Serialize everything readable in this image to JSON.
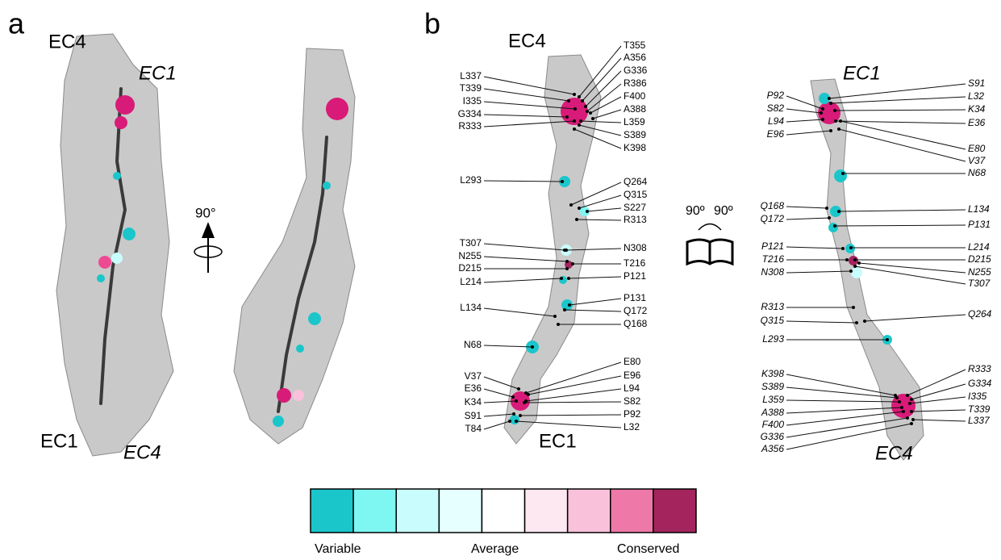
{
  "panel_a": {
    "label": "a",
    "left_top": "EC4",
    "left_top_italic": "EC1",
    "left_bottom": "EC1",
    "left_bottom_italic": "EC4",
    "rotation": "90°"
  },
  "panel_b": {
    "label": "b",
    "left": {
      "top": "EC4",
      "bottom": "EC1",
      "labels_left": [
        "L337",
        "T339",
        "I335",
        "G334",
        "R333",
        "L293",
        "T307",
        "N255",
        "D215",
        "L214",
        "L134",
        "N68",
        "V37",
        "E36",
        "K34",
        "S91",
        "T84"
      ],
      "labels_right": [
        "T355",
        "A356",
        "G336",
        "R386",
        "F400",
        "A388",
        "L359",
        "S389",
        "K398",
        "Q264",
        "Q315",
        "S227",
        "R313",
        "N308",
        "T216",
        "P121",
        "P131",
        "Q172",
        "Q168",
        "E80",
        "E96",
        "L94",
        "S82",
        "P92",
        "L32"
      ]
    },
    "rotation": [
      "90º",
      "90º"
    ],
    "right": {
      "top": "EC1",
      "bottom": "EC4",
      "labels_left": [
        "P92",
        "S82",
        "L94",
        "E96",
        "Q168",
        "Q172",
        "P121",
        "T216",
        "N308",
        "R313",
        "Q315",
        "L293",
        "K398",
        "S389",
        "L359",
        "A388",
        "F400",
        "G336",
        "A356"
      ],
      "labels_right": [
        "S91",
        "L32",
        "K34",
        "E36",
        "E80",
        "V37",
        "N68",
        "L134",
        "P131",
        "L214",
        "D215",
        "N255",
        "T307",
        "Q264",
        "R333",
        "G334",
        "I335",
        "T339",
        "L337"
      ]
    }
  },
  "legend": {
    "colors": [
      "#1bc6cb",
      "#7ef7f3",
      "#c9fcfc",
      "#e6ffff",
      "#ffffff",
      "#fde8f1",
      "#f9c2da",
      "#ee78a8",
      "#a4245e"
    ],
    "labels": [
      "Variable",
      "Average",
      "Conserved"
    ]
  }
}
